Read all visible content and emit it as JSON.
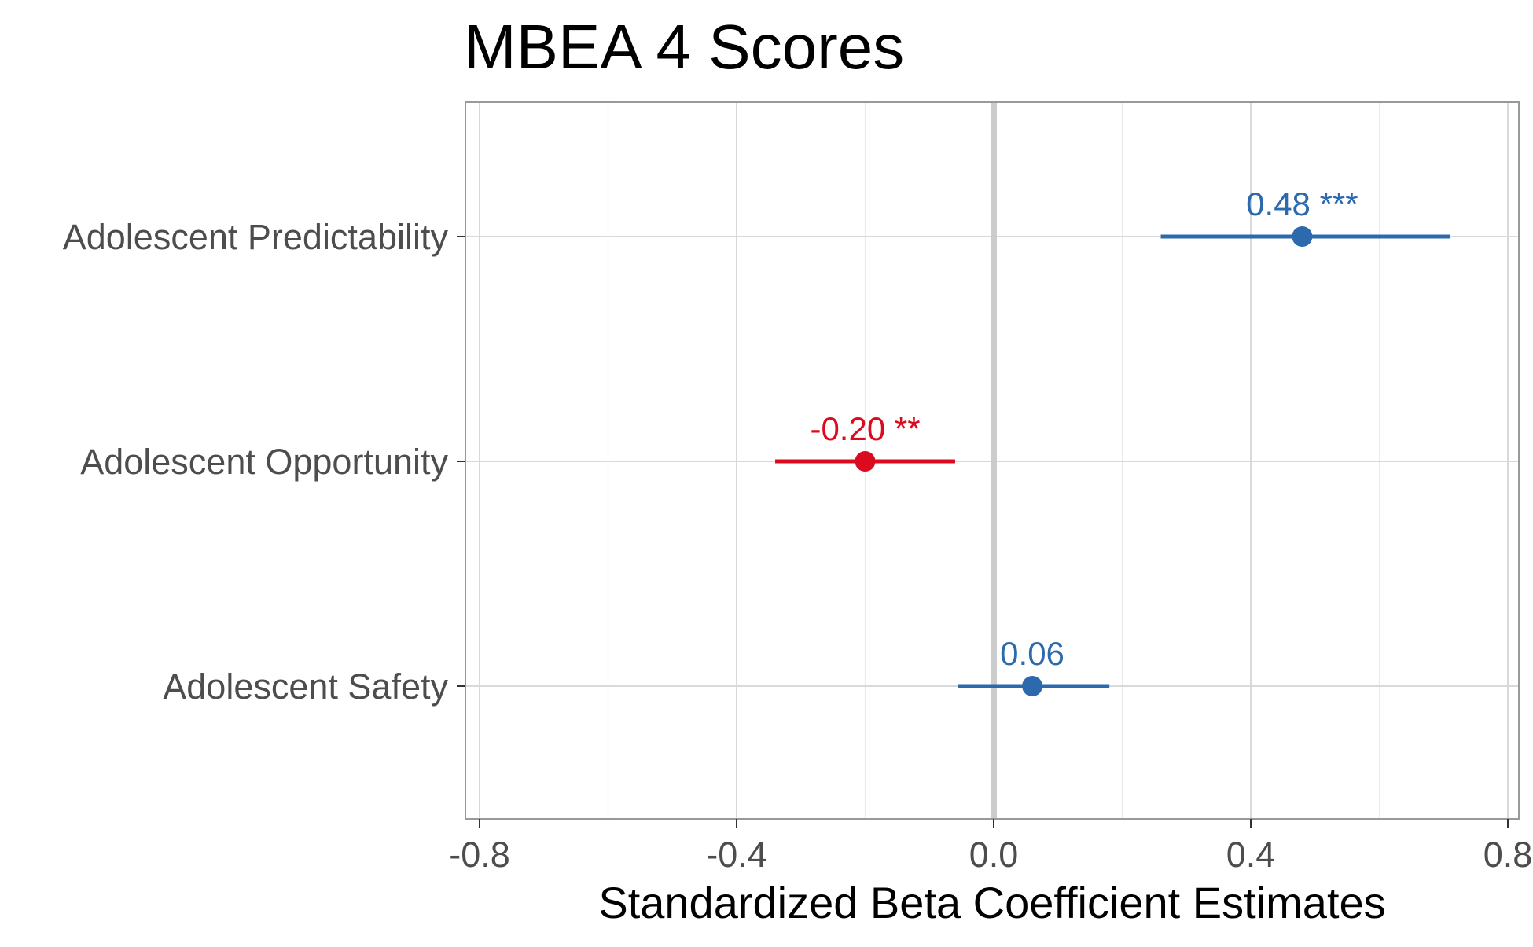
{
  "chart_data": {
    "type": "scatter",
    "title": "MBEA 4 Scores",
    "xlabel": "Standardized Beta Coefficient Estimates",
    "ylabel": "",
    "xlim": [
      -0.82,
      0.82
    ],
    "x_ticks": [
      -0.8,
      -0.4,
      0.0,
      0.4,
      0.8
    ],
    "x_tick_labels": [
      "-0.8",
      "-0.4",
      "0.0",
      "0.4",
      "0.8"
    ],
    "categories": [
      "Adolescent Predictability",
      "Adolescent Opportunity",
      "Adolescent Safety"
    ],
    "reference_line": 0.0,
    "grid": true,
    "legend": "none",
    "points": [
      {
        "category": "Adolescent Predictability",
        "estimate": 0.48,
        "ci_low": 0.26,
        "ci_high": 0.71,
        "label": "0.48 ***",
        "color": "#2c6aad"
      },
      {
        "category": "Adolescent Opportunity",
        "estimate": -0.2,
        "ci_low": -0.34,
        "ci_high": -0.06,
        "label": "-0.20 **",
        "color": "#dc0a1e"
      },
      {
        "category": "Adolescent Safety",
        "estimate": 0.06,
        "ci_low": -0.055,
        "ci_high": 0.18,
        "label": "0.06",
        "color": "#2c6aad"
      }
    ]
  }
}
